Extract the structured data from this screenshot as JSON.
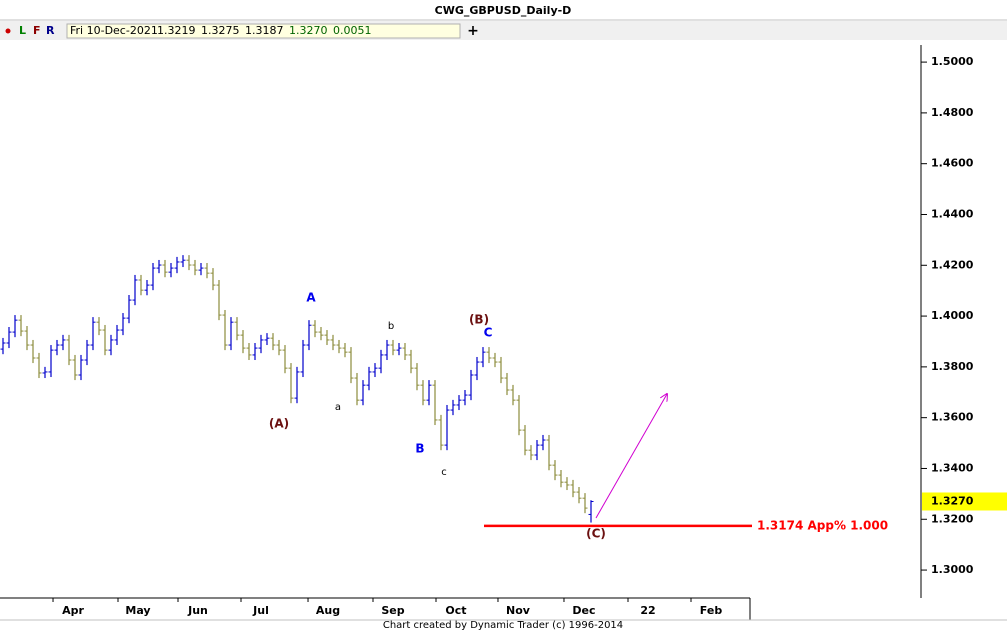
{
  "chart_data": {
    "type": "ohlc",
    "title": "CWG_GBPUSD_Daily-D",
    "info_letters": [
      "L",
      "F",
      "R"
    ],
    "info": {
      "date": "Fri 10-Dec-2021",
      "values": [
        "1.3219",
        "1.3275",
        "1.3187",
        "1.3270",
        "0.0051"
      ]
    },
    "footer": "Chart created by Dynamic Trader  (c) 1996-2014",
    "up_color": "#0000cc",
    "down_color": "#8c8c3c",
    "x": [
      0,
      1,
      2,
      3,
      4,
      5,
      6,
      7,
      8,
      9,
      10,
      11,
      12,
      13,
      14,
      15,
      16,
      17,
      18,
      19,
      20,
      21,
      22,
      23,
      24,
      25,
      26,
      27,
      28,
      29,
      30,
      31,
      32,
      33,
      34,
      35,
      36,
      37,
      38,
      39,
      40,
      41,
      42,
      43,
      44,
      45,
      46,
      47,
      48,
      49,
      50,
      51,
      52,
      53,
      54,
      55,
      56,
      57,
      58,
      59,
      60,
      61,
      62,
      63,
      64,
      65,
      66,
      67,
      68,
      69,
      70,
      71,
      72,
      73,
      74,
      75,
      76,
      77,
      78,
      79,
      80,
      81,
      82,
      83,
      84,
      85,
      86,
      87,
      88,
      89,
      90,
      91,
      92,
      93,
      94,
      95,
      96,
      97,
      98
    ],
    "open": [
      1.387,
      1.3894,
      1.3937,
      1.3984,
      1.3941,
      1.3886,
      1.3835,
      1.3776,
      1.378,
      1.3866,
      1.3886,
      1.3906,
      1.3827,
      1.3768,
      1.3827,
      1.3886,
      1.3976,
      1.3945,
      1.3866,
      1.3906,
      1.3945,
      1.3992,
      1.4063,
      1.4142,
      1.4102,
      1.4122,
      1.4189,
      1.4201,
      1.4173,
      1.4189,
      1.4213,
      1.422,
      1.4201,
      1.4181,
      1.4189,
      1.4169,
      1.4122,
      1.4004,
      1.3886,
      1.3976,
      1.3925,
      1.3874,
      1.3847,
      1.3874,
      1.3906,
      1.3913,
      1.3886,
      1.3866,
      1.3795,
      1.3677,
      1.378,
      1.3886,
      1.3964,
      1.3937,
      1.3925,
      1.3906,
      1.3886,
      1.3874,
      1.3858,
      1.3756,
      1.3669,
      1.3728,
      1.378,
      1.3795,
      1.3847,
      1.3886,
      1.3866,
      1.3874,
      1.3847,
      1.3795,
      1.3728,
      1.3669,
      1.3728,
      1.3591,
      1.3492,
      1.363,
      1.365,
      1.3669,
      1.3689,
      1.3768,
      1.3819,
      1.3858,
      1.3835,
      1.3819,
      1.3756,
      1.3709,
      1.3669,
      1.3551,
      1.3472,
      1.3453,
      1.3492,
      1.3512,
      1.3413,
      1.3374,
      1.3346,
      1.3335,
      1.3307,
      1.3283,
      1.3219
    ],
    "high": [
      1.3914,
      1.3957,
      1.4004,
      1.4004,
      1.3961,
      1.3906,
      1.3855,
      1.38,
      1.3886,
      1.3906,
      1.3926,
      1.3926,
      1.3847,
      1.3847,
      1.3906,
      1.3996,
      1.3996,
      1.3965,
      1.3926,
      1.3965,
      1.4012,
      1.4083,
      1.4162,
      1.4162,
      1.4142,
      1.4209,
      1.4221,
      1.4221,
      1.4209,
      1.4233,
      1.424,
      1.424,
      1.4221,
      1.4209,
      1.4209,
      1.4189,
      1.4142,
      1.4024,
      1.3996,
      1.3996,
      1.3945,
      1.3894,
      1.3894,
      1.3926,
      1.3933,
      1.3933,
      1.3906,
      1.3886,
      1.3815,
      1.38,
      1.3906,
      1.3984,
      1.3984,
      1.3957,
      1.3945,
      1.3926,
      1.3906,
      1.3894,
      1.3878,
      1.3776,
      1.3748,
      1.38,
      1.3815,
      1.3867,
      1.3906,
      1.3906,
      1.3894,
      1.3894,
      1.3867,
      1.3815,
      1.3748,
      1.3748,
      1.3748,
      1.3611,
      1.365,
      1.367,
      1.3689,
      1.3709,
      1.3788,
      1.3839,
      1.3878,
      1.3878,
      1.3855,
      1.3839,
      1.3776,
      1.3729,
      1.3689,
      1.3571,
      1.3492,
      1.3512,
      1.3532,
      1.3532,
      1.3433,
      1.3394,
      1.3366,
      1.3355,
      1.3327,
      1.3303,
      1.3275
    ],
    "low": [
      1.385,
      1.3874,
      1.3917,
      1.3921,
      1.3866,
      1.3815,
      1.3756,
      1.3756,
      1.376,
      1.3846,
      1.3866,
      1.3807,
      1.3748,
      1.3748,
      1.3807,
      1.3866,
      1.3925,
      1.3846,
      1.3846,
      1.3886,
      1.3925,
      1.3972,
      1.4043,
      1.4082,
      1.4082,
      1.4102,
      1.4169,
      1.4153,
      1.4153,
      1.4169,
      1.4193,
      1.4181,
      1.4161,
      1.4161,
      1.4149,
      1.4102,
      1.3984,
      1.3866,
      1.3866,
      1.3905,
      1.3854,
      1.3827,
      1.3827,
      1.3854,
      1.3886,
      1.3866,
      1.3846,
      1.3775,
      1.3657,
      1.3657,
      1.376,
      1.3866,
      1.3917,
      1.3905,
      1.3886,
      1.3866,
      1.3854,
      1.3838,
      1.3736,
      1.3649,
      1.3649,
      1.3708,
      1.376,
      1.3775,
      1.3827,
      1.3846,
      1.3846,
      1.3827,
      1.3775,
      1.3708,
      1.3649,
      1.3649,
      1.3571,
      1.3472,
      1.3472,
      1.361,
      1.363,
      1.3649,
      1.3669,
      1.3748,
      1.3799,
      1.3815,
      1.3799,
      1.3736,
      1.3689,
      1.3649,
      1.3531,
      1.3452,
      1.3433,
      1.3433,
      1.3472,
      1.3393,
      1.3354,
      1.3326,
      1.3315,
      1.3287,
      1.3263,
      1.3224,
      1.3187
    ],
    "close": [
      1.3894,
      1.3937,
      1.3984,
      1.3941,
      1.3886,
      1.3835,
      1.3776,
      1.378,
      1.3866,
      1.3886,
      1.3906,
      1.3827,
      1.3768,
      1.3827,
      1.3886,
      1.3976,
      1.3945,
      1.3866,
      1.3906,
      1.3945,
      1.3992,
      1.4063,
      1.4142,
      1.4102,
      1.4122,
      1.4189,
      1.4201,
      1.4173,
      1.4189,
      1.4213,
      1.422,
      1.4201,
      1.4181,
      1.4189,
      1.4169,
      1.4122,
      1.4004,
      1.3886,
      1.3976,
      1.3925,
      1.3874,
      1.3847,
      1.3874,
      1.3906,
      1.3913,
      1.3886,
      1.3866,
      1.3795,
      1.3677,
      1.378,
      1.3886,
      1.3964,
      1.3937,
      1.3925,
      1.3906,
      1.3886,
      1.3874,
      1.3858,
      1.3756,
      1.3669,
      1.3728,
      1.378,
      1.3795,
      1.3847,
      1.3886,
      1.3866,
      1.3874,
      1.3847,
      1.3795,
      1.3728,
      1.3669,
      1.3728,
      1.3591,
      1.3492,
      1.363,
      1.365,
      1.3669,
      1.3689,
      1.3768,
      1.3819,
      1.3858,
      1.3835,
      1.3819,
      1.3756,
      1.3709,
      1.3669,
      1.3551,
      1.3472,
      1.3453,
      1.3492,
      1.3512,
      1.3413,
      1.3374,
      1.3346,
      1.3335,
      1.3307,
      1.3283,
      1.3244,
      1.327
    ],
    "xlim": [
      -0.5,
      124.5
    ],
    "xticks": [
      {
        "value": 11.67,
        "label": "Apr"
      },
      {
        "value": 22.5,
        "label": "May"
      },
      {
        "value": 32.5,
        "label": "Jun"
      },
      {
        "value": 43,
        "label": "Jul"
      },
      {
        "value": 54.17,
        "label": "Aug"
      },
      {
        "value": 65,
        "label": "Sep"
      },
      {
        "value": 75.5,
        "label": "Oct"
      },
      {
        "value": 85.83,
        "label": "Nov"
      },
      {
        "value": 96.83,
        "label": "Dec"
      },
      {
        "value": 107.5,
        "label": "22"
      },
      {
        "value": 118,
        "label": "Feb"
      }
    ],
    "ylim": [
      1.289,
      1.5087
    ],
    "yticks": [
      {
        "value": 1.3,
        "label": "1.3000"
      },
      {
        "value": 1.32,
        "label": "1.3200"
      },
      {
        "value": 1.34,
        "label": "1.3400"
      },
      {
        "value": 1.36,
        "label": "1.3600"
      },
      {
        "value": 1.38,
        "label": "1.3800"
      },
      {
        "value": 1.4,
        "label": "1.4000"
      },
      {
        "value": 1.42,
        "label": "1.4200"
      },
      {
        "value": 1.44,
        "label": "1.4400"
      },
      {
        "value": 1.46,
        "label": "1.4600"
      },
      {
        "value": 1.48,
        "label": "1.4800"
      },
      {
        "value": 1.5,
        "label": "1.5000"
      }
    ],
    "last_price": {
      "value": 1.327,
      "label": "1.3270"
    },
    "support": {
      "value": 1.3174,
      "label": "1.3174 App% 1.000",
      "color": "#ff0000"
    },
    "annotations": [
      {
        "text": "(A)",
        "color": "#6b1010"
      },
      {
        "text": "a",
        "color": "#000000"
      },
      {
        "text": "A",
        "color": "#0000ee"
      },
      {
        "text": "b",
        "color": "#000000"
      },
      {
        "text": "B",
        "color": "#0000ee"
      },
      {
        "text": "c",
        "color": "#000000"
      },
      {
        "text": "C",
        "color": "#0000ee"
      },
      {
        "text": "(B)",
        "color": "#6b1010"
      },
      {
        "text": "(C)",
        "color": "#6b1010"
      }
    ]
  }
}
